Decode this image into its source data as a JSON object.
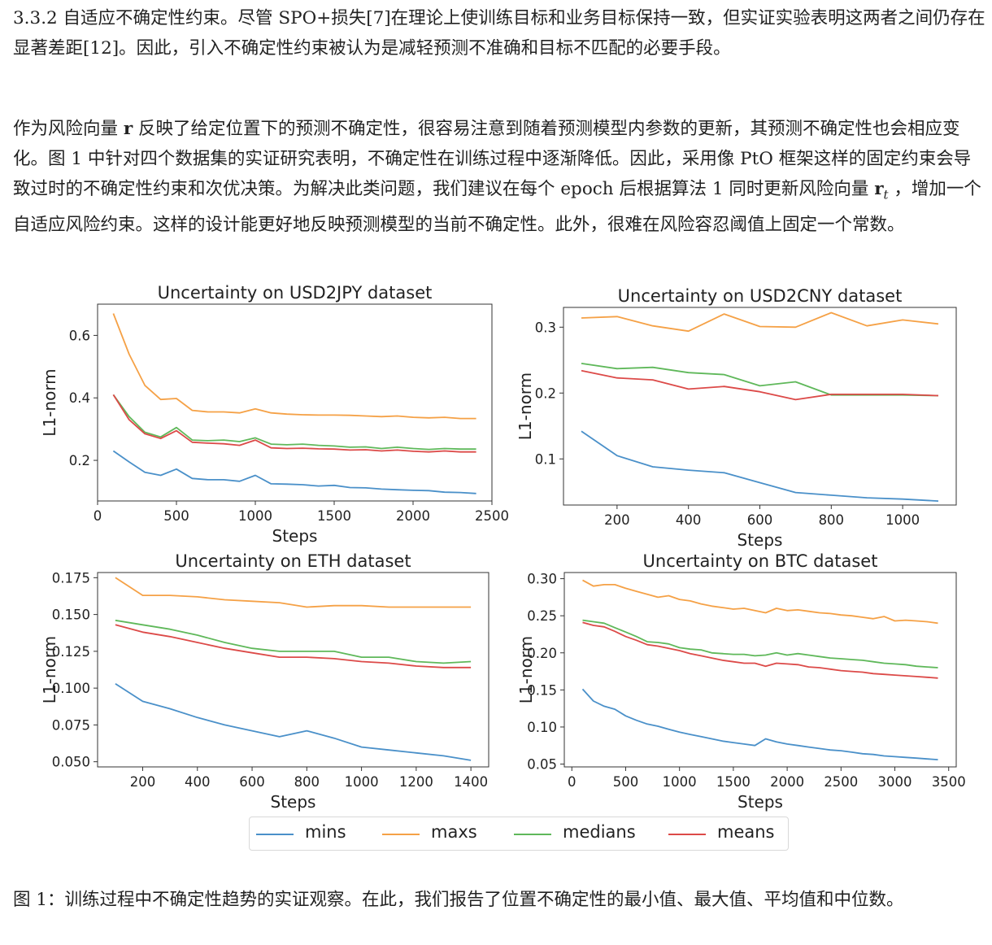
{
  "paragraph1": {
    "text": "3.3.2 自适应不确定性约束。尽管 SPO+损失[7]在理论上使训练目标和业务目标保持一致，但实证实验表明这两者之间仍存在显著差距[12]。因此，引入不确定性约束被认为是减轻预测不准确和目标不匹配的必要手段。"
  },
  "paragraph2": {
    "part1": "作为风险向量 ",
    "vec_r": "r",
    "part2": " 反映了给定位置下的预测不确定性，很容易注意到随着预测模型内参数的更新，其预测不确定性也会相应变化。图 1 中针对四个数据集的实证研究表明，不确定性在训练过程中逐渐降低。因此，采用像 PtO 框架这样的固定约束会导致过时的不确定性约束和次优决策。为解决此类问题，我们建议在每个 epoch 后根据算法 1 同时更新风险向量 ",
    "vec_rt": "r",
    "sub_t": "t",
    "part3": " ，增加一个自适应风险约束。这样的设计能更好地反映预测模型的当前不确定性。此外，很难在风险容忍阈值上固定一个常数。"
  },
  "caption": "图 1：训练过程中不确定性趋势的实证观察。在此，我们报告了位置不确定性的最小值、最大值、平均值和中位数。",
  "legend": [
    {
      "name": "mins",
      "color": "#4a90c9"
    },
    {
      "name": "maxs",
      "color": "#f5a146"
    },
    {
      "name": "medians",
      "color": "#5fb85a"
    },
    {
      "name": "means",
      "color": "#dc4a48"
    }
  ],
  "chart_data": [
    {
      "type": "line",
      "title": "Uncertainty on USD2JPY dataset",
      "xlabel": "Steps",
      "ylabel": "L1-norm",
      "xlim": [
        0,
        2500
      ],
      "ylim": [
        0.07,
        0.7
      ],
      "xticks": [
        0,
        500,
        1000,
        1500,
        2000,
        2500
      ],
      "yticks": [
        0.2,
        0.4,
        0.6
      ],
      "ytick_labels": [
        "0.2",
        "0.4",
        "0.6"
      ],
      "x": [
        100,
        200,
        300,
        400,
        500,
        600,
        700,
        800,
        900,
        1000,
        1100,
        1200,
        1300,
        1400,
        1500,
        1600,
        1700,
        1800,
        1900,
        2000,
        2100,
        2200,
        2300,
        2400
      ],
      "series": [
        {
          "name": "mins",
          "values": [
            0.23,
            0.195,
            0.162,
            0.152,
            0.172,
            0.142,
            0.138,
            0.138,
            0.133,
            0.152,
            0.125,
            0.124,
            0.122,
            0.118,
            0.12,
            0.113,
            0.112,
            0.108,
            0.106,
            0.104,
            0.103,
            0.098,
            0.097,
            0.094
          ]
        },
        {
          "name": "maxs",
          "values": [
            0.67,
            0.54,
            0.44,
            0.395,
            0.398,
            0.36,
            0.355,
            0.355,
            0.352,
            0.365,
            0.352,
            0.348,
            0.346,
            0.345,
            0.345,
            0.344,
            0.342,
            0.34,
            0.342,
            0.338,
            0.336,
            0.338,
            0.334,
            0.334
          ]
        },
        {
          "name": "medians",
          "values": [
            0.41,
            0.34,
            0.29,
            0.275,
            0.305,
            0.265,
            0.263,
            0.265,
            0.26,
            0.272,
            0.252,
            0.25,
            0.252,
            0.248,
            0.246,
            0.242,
            0.243,
            0.238,
            0.242,
            0.238,
            0.235,
            0.238,
            0.236,
            0.236
          ]
        },
        {
          "name": "means",
          "values": [
            0.41,
            0.33,
            0.285,
            0.27,
            0.295,
            0.258,
            0.255,
            0.253,
            0.248,
            0.265,
            0.24,
            0.238,
            0.239,
            0.237,
            0.236,
            0.233,
            0.234,
            0.23,
            0.233,
            0.229,
            0.227,
            0.23,
            0.227,
            0.227
          ]
        }
      ]
    },
    {
      "type": "line",
      "title": "Uncertainty on USD2CNY dataset",
      "xlabel": "Steps",
      "ylabel": "L1-norm",
      "xlim": [
        50,
        1150
      ],
      "ylim": [
        0.03,
        0.33
      ],
      "xticks": [
        200,
        400,
        600,
        800,
        1000
      ],
      "yticks": [
        0.1,
        0.2,
        0.3
      ],
      "ytick_labels": [
        "0.1",
        "0.2",
        "0.3"
      ],
      "x": [
        100,
        200,
        300,
        400,
        500,
        600,
        700,
        800,
        900,
        1000,
        1100
      ],
      "series": [
        {
          "name": "mins",
          "values": [
            0.142,
            0.105,
            0.088,
            0.083,
            0.079,
            0.064,
            0.049,
            0.045,
            0.041,
            0.039,
            0.036
          ]
        },
        {
          "name": "maxs",
          "values": [
            0.314,
            0.316,
            0.302,
            0.294,
            0.32,
            0.301,
            0.3,
            0.322,
            0.302,
            0.311,
            0.305
          ]
        },
        {
          "name": "medians",
          "values": [
            0.245,
            0.237,
            0.239,
            0.231,
            0.228,
            0.211,
            0.217,
            0.197,
            0.197,
            0.197,
            0.196
          ]
        },
        {
          "name": "means",
          "values": [
            0.234,
            0.223,
            0.22,
            0.206,
            0.21,
            0.202,
            0.19,
            0.198,
            0.198,
            0.198,
            0.196
          ]
        }
      ]
    },
    {
      "type": "line",
      "title": "Uncertainty on ETH dataset",
      "xlabel": "Steps",
      "ylabel": "L1-norm",
      "xlim": [
        35,
        1465
      ],
      "ylim": [
        0.0465,
        0.1785
      ],
      "xticks": [
        200,
        400,
        600,
        800,
        1000,
        1200,
        1400
      ],
      "yticks": [
        0.05,
        0.075,
        0.1,
        0.125,
        0.15,
        0.175
      ],
      "ytick_labels": [
        "0.050",
        "0.075",
        "0.100",
        "0.125",
        "0.150",
        "0.175"
      ],
      "x": [
        100,
        200,
        300,
        400,
        500,
        600,
        700,
        800,
        900,
        1000,
        1100,
        1200,
        1300,
        1400
      ],
      "series": [
        {
          "name": "mins",
          "values": [
            0.103,
            0.091,
            0.086,
            0.08,
            0.075,
            0.071,
            0.067,
            0.071,
            0.066,
            0.06,
            0.058,
            0.056,
            0.054,
            0.051
          ]
        },
        {
          "name": "maxs",
          "values": [
            0.175,
            0.163,
            0.163,
            0.162,
            0.16,
            0.159,
            0.158,
            0.155,
            0.156,
            0.156,
            0.155,
            0.155,
            0.155,
            0.155
          ]
        },
        {
          "name": "medians",
          "values": [
            0.146,
            0.143,
            0.14,
            0.136,
            0.131,
            0.127,
            0.125,
            0.125,
            0.125,
            0.121,
            0.121,
            0.118,
            0.117,
            0.118
          ]
        },
        {
          "name": "means",
          "values": [
            0.143,
            0.138,
            0.135,
            0.131,
            0.127,
            0.124,
            0.121,
            0.121,
            0.12,
            0.118,
            0.117,
            0.115,
            0.114,
            0.114
          ]
        }
      ]
    },
    {
      "type": "line",
      "title": "Uncertainty on BTC dataset",
      "xlabel": "Steps",
      "ylabel": "L1-norm",
      "xlim": [
        -70,
        3570
      ],
      "ylim": [
        0.0462,
        0.3083
      ],
      "xticks": [
        0,
        500,
        1000,
        1500,
        2000,
        2500,
        3000,
        3500
      ],
      "yticks": [
        0.05,
        0.1,
        0.15,
        0.2,
        0.25,
        0.3
      ],
      "ytick_labels": [
        "0.05",
        "0.10",
        "0.15",
        "0.20",
        "0.25",
        "0.30"
      ],
      "x": [
        100,
        200,
        300,
        400,
        500,
        600,
        700,
        800,
        900,
        1000,
        1100,
        1200,
        1300,
        1400,
        1500,
        1600,
        1700,
        1800,
        1900,
        2000,
        2100,
        2200,
        2300,
        2400,
        2500,
        2600,
        2700,
        2800,
        2900,
        3000,
        3100,
        3200,
        3300,
        3400
      ],
      "series": [
        {
          "name": "mins",
          "values": [
            0.151,
            0.135,
            0.128,
            0.124,
            0.115,
            0.109,
            0.104,
            0.101,
            0.097,
            0.093,
            0.09,
            0.087,
            0.084,
            0.081,
            0.079,
            0.077,
            0.075,
            0.084,
            0.08,
            0.077,
            0.075,
            0.073,
            0.071,
            0.069,
            0.068,
            0.066,
            0.064,
            0.063,
            0.061,
            0.06,
            0.059,
            0.058,
            0.057,
            0.056
          ]
        },
        {
          "name": "maxs",
          "values": [
            0.298,
            0.29,
            0.292,
            0.292,
            0.287,
            0.283,
            0.279,
            0.275,
            0.277,
            0.272,
            0.27,
            0.266,
            0.263,
            0.261,
            0.259,
            0.26,
            0.257,
            0.254,
            0.26,
            0.257,
            0.258,
            0.256,
            0.254,
            0.253,
            0.251,
            0.25,
            0.248,
            0.246,
            0.249,
            0.243,
            0.244,
            0.243,
            0.242,
            0.24
          ]
        },
        {
          "name": "medians",
          "values": [
            0.244,
            0.242,
            0.24,
            0.234,
            0.228,
            0.222,
            0.215,
            0.214,
            0.212,
            0.207,
            0.205,
            0.204,
            0.2,
            0.199,
            0.198,
            0.198,
            0.196,
            0.197,
            0.2,
            0.197,
            0.199,
            0.197,
            0.195,
            0.193,
            0.192,
            0.191,
            0.19,
            0.188,
            0.186,
            0.185,
            0.184,
            0.182,
            0.181,
            0.18
          ]
        },
        {
          "name": "means",
          "values": [
            0.241,
            0.237,
            0.235,
            0.229,
            0.222,
            0.217,
            0.211,
            0.209,
            0.206,
            0.203,
            0.199,
            0.196,
            0.193,
            0.19,
            0.188,
            0.186,
            0.186,
            0.182,
            0.186,
            0.185,
            0.184,
            0.181,
            0.18,
            0.178,
            0.176,
            0.175,
            0.174,
            0.172,
            0.171,
            0.17,
            0.169,
            0.168,
            0.167,
            0.166
          ]
        }
      ]
    }
  ]
}
